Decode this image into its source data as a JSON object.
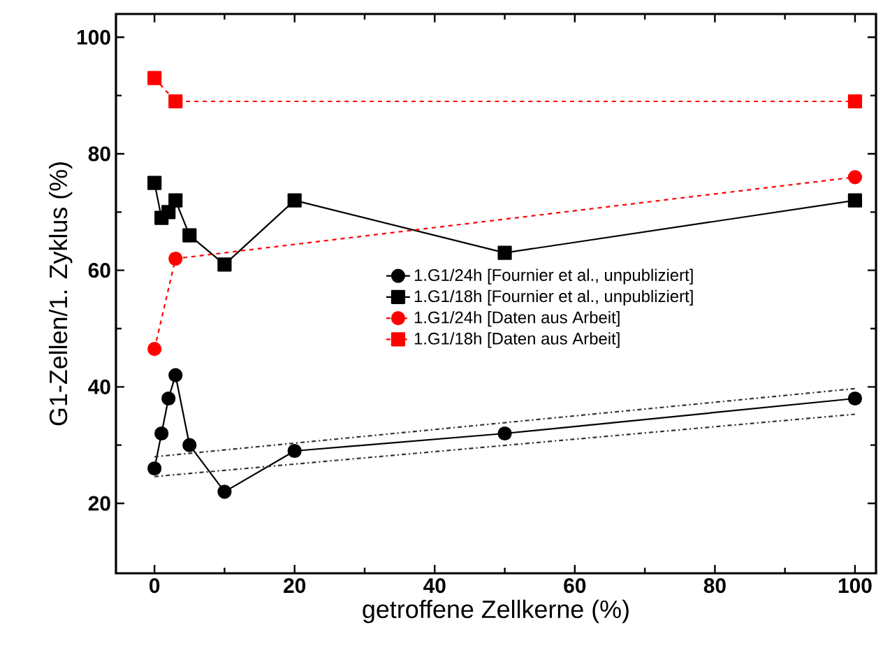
{
  "chart_data": {
    "type": "line",
    "xlabel": "getroffene Zellkerne (%)",
    "ylabel": "G1-Zellen/1. Zyklus (%)",
    "xlim": [
      -5.5,
      103
    ],
    "ylim": [
      8,
      104
    ],
    "xticks": [
      0,
      20,
      40,
      60,
      80,
      100
    ],
    "yticks": [
      20,
      40,
      60,
      80,
      100
    ],
    "legend": "right",
    "grid": false,
    "series": [
      {
        "name": "1.G1/24h [Fournier et al., unpubliziert]",
        "color": "#000000",
        "marker": "circle",
        "line_style": "solid",
        "x": [
          0,
          1,
          2,
          3,
          5,
          10,
          20,
          50,
          100
        ],
        "values": [
          26,
          32,
          38,
          42,
          30,
          22,
          29,
          32,
          38
        ]
      },
      {
        "name": "1.G1/18h [Fournier et al., unpubliziert]",
        "color": "#000000",
        "marker": "square",
        "line_style": "solid",
        "x": [
          0,
          1,
          2,
          3,
          5,
          10,
          20,
          50,
          100
        ],
        "values": [
          75,
          69,
          70,
          72,
          66,
          61,
          72,
          63,
          72
        ]
      },
      {
        "name": "1.G1/24h [Daten aus Arbeit]",
        "color": "#ff0000",
        "marker": "circle",
        "line_style": "dashed",
        "x": [
          0,
          3,
          100
        ],
        "values": [
          46.5,
          62,
          76
        ]
      },
      {
        "name": "1.G1/18h [Daten aus Arbeit]",
        "color": "#ff0000",
        "marker": "square",
        "line_style": "dashed",
        "x": [
          0,
          3,
          100
        ],
        "values": [
          93,
          89,
          89
        ]
      },
      {
        "color": "#333333",
        "marker": "none",
        "line_style": "dashdot",
        "x": [
          0,
          100
        ],
        "values": [
          28,
          39.7
        ]
      },
      {
        "color": "#333333",
        "marker": "none",
        "line_style": "dashdot",
        "x": [
          0,
          100
        ],
        "values": [
          24.6,
          35.3
        ]
      }
    ]
  }
}
